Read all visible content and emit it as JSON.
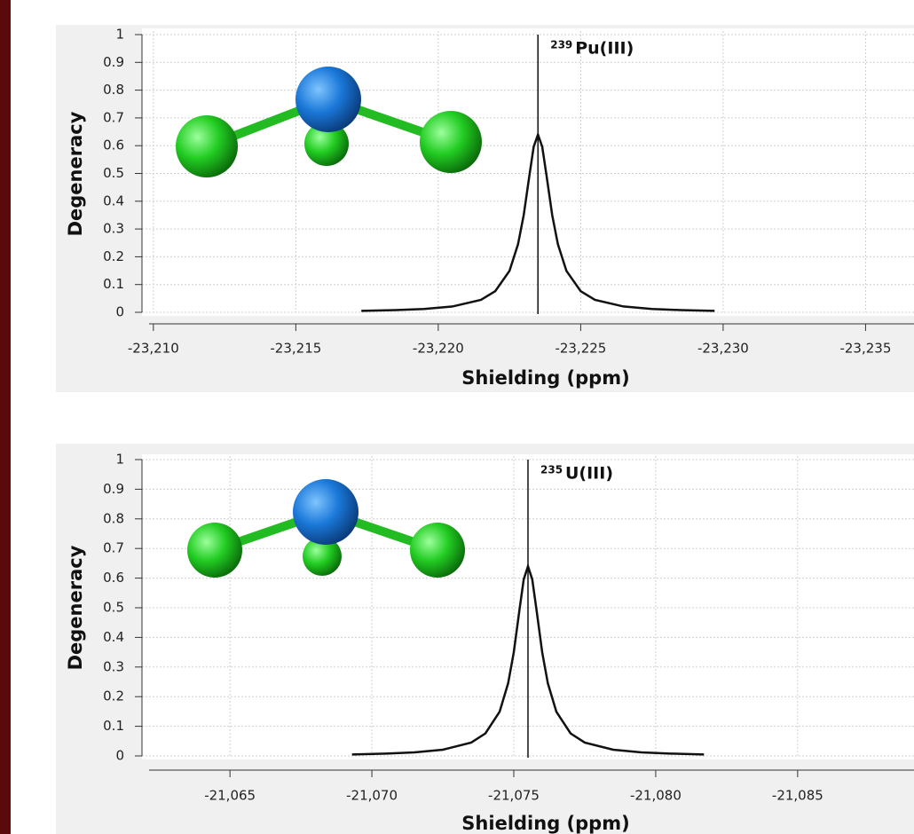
{
  "chart_data": [
    {
      "type": "line",
      "color": "#111111",
      "grid": true,
      "ylabel": "Degeneracy",
      "xlabel": "Shielding (ppm)",
      "annotation_superscript": "239",
      "annotation": "Pu(III)",
      "reference_x": -23223.5,
      "xlim": [
        -23209.6,
        -23236.7
      ],
      "ylim": [
        0,
        1
      ],
      "xticks": [
        {
          "value": -23210,
          "label": "-23,210"
        },
        {
          "value": -23215,
          "label": "-23,215"
        },
        {
          "value": -23220,
          "label": "-23,220"
        },
        {
          "value": -23225,
          "label": "-23,225"
        },
        {
          "value": -23230,
          "label": "-23,230"
        },
        {
          "value": -23235,
          "label": "-23,235"
        }
      ],
      "yticks": [
        0,
        0.1,
        0.2,
        0.3,
        0.4,
        0.5,
        0.6,
        0.7,
        0.8,
        0.9,
        1
      ],
      "x": [
        -23217.3,
        -23218.5,
        -23219.5,
        -23220.5,
        -23221.5,
        -23222,
        -23222.5,
        -23222.8,
        -23223,
        -23223.2,
        -23223.35,
        -23223.5,
        -23223.65,
        -23223.8,
        -23224,
        -23224.2,
        -23224.5,
        -23225,
        -23225.5,
        -23226.5,
        -23227.5,
        -23228.5,
        -23229.7
      ],
      "values": [
        0.005,
        0.008,
        0.012,
        0.021,
        0.045,
        0.076,
        0.149,
        0.245,
        0.35,
        0.493,
        0.596,
        0.64,
        0.596,
        0.493,
        0.35,
        0.245,
        0.149,
        0.076,
        0.045,
        0.021,
        0.012,
        0.008,
        0.005
      ]
    },
    {
      "type": "line",
      "color": "#111111",
      "grid": true,
      "ylabel": "Degeneracy",
      "xlabel": "Shielding (ppm)",
      "annotation_superscript": "235",
      "annotation": "U(III)",
      "reference_x": -21075.5,
      "xlim": [
        -21061.9,
        -21089.1
      ],
      "ylim": [
        0,
        1
      ],
      "xticks": [
        {
          "value": -21065,
          "label": "-21,065"
        },
        {
          "value": -21070,
          "label": "-21,070"
        },
        {
          "value": -21075,
          "label": "-21,075"
        },
        {
          "value": -21080,
          "label": "-21,080"
        },
        {
          "value": -21085,
          "label": "-21,085"
        }
      ],
      "yticks": [
        0,
        0.1,
        0.2,
        0.3,
        0.4,
        0.5,
        0.6,
        0.7,
        0.8,
        0.9,
        1
      ],
      "x": [
        -21069.3,
        -21070.5,
        -21071.5,
        -21072.5,
        -21073.5,
        -21074,
        -21074.5,
        -21074.8,
        -21075,
        -21075.2,
        -21075.35,
        -21075.5,
        -21075.65,
        -21075.8,
        -21076,
        -21076.2,
        -21076.5,
        -21077,
        -21077.5,
        -21078.5,
        -21079.5,
        -21080.5,
        -21081.7
      ],
      "values": [
        0.005,
        0.008,
        0.012,
        0.021,
        0.045,
        0.076,
        0.149,
        0.245,
        0.35,
        0.493,
        0.596,
        0.64,
        0.596,
        0.493,
        0.35,
        0.245,
        0.149,
        0.076,
        0.045,
        0.021,
        0.012,
        0.008,
        0.005
      ]
    }
  ]
}
